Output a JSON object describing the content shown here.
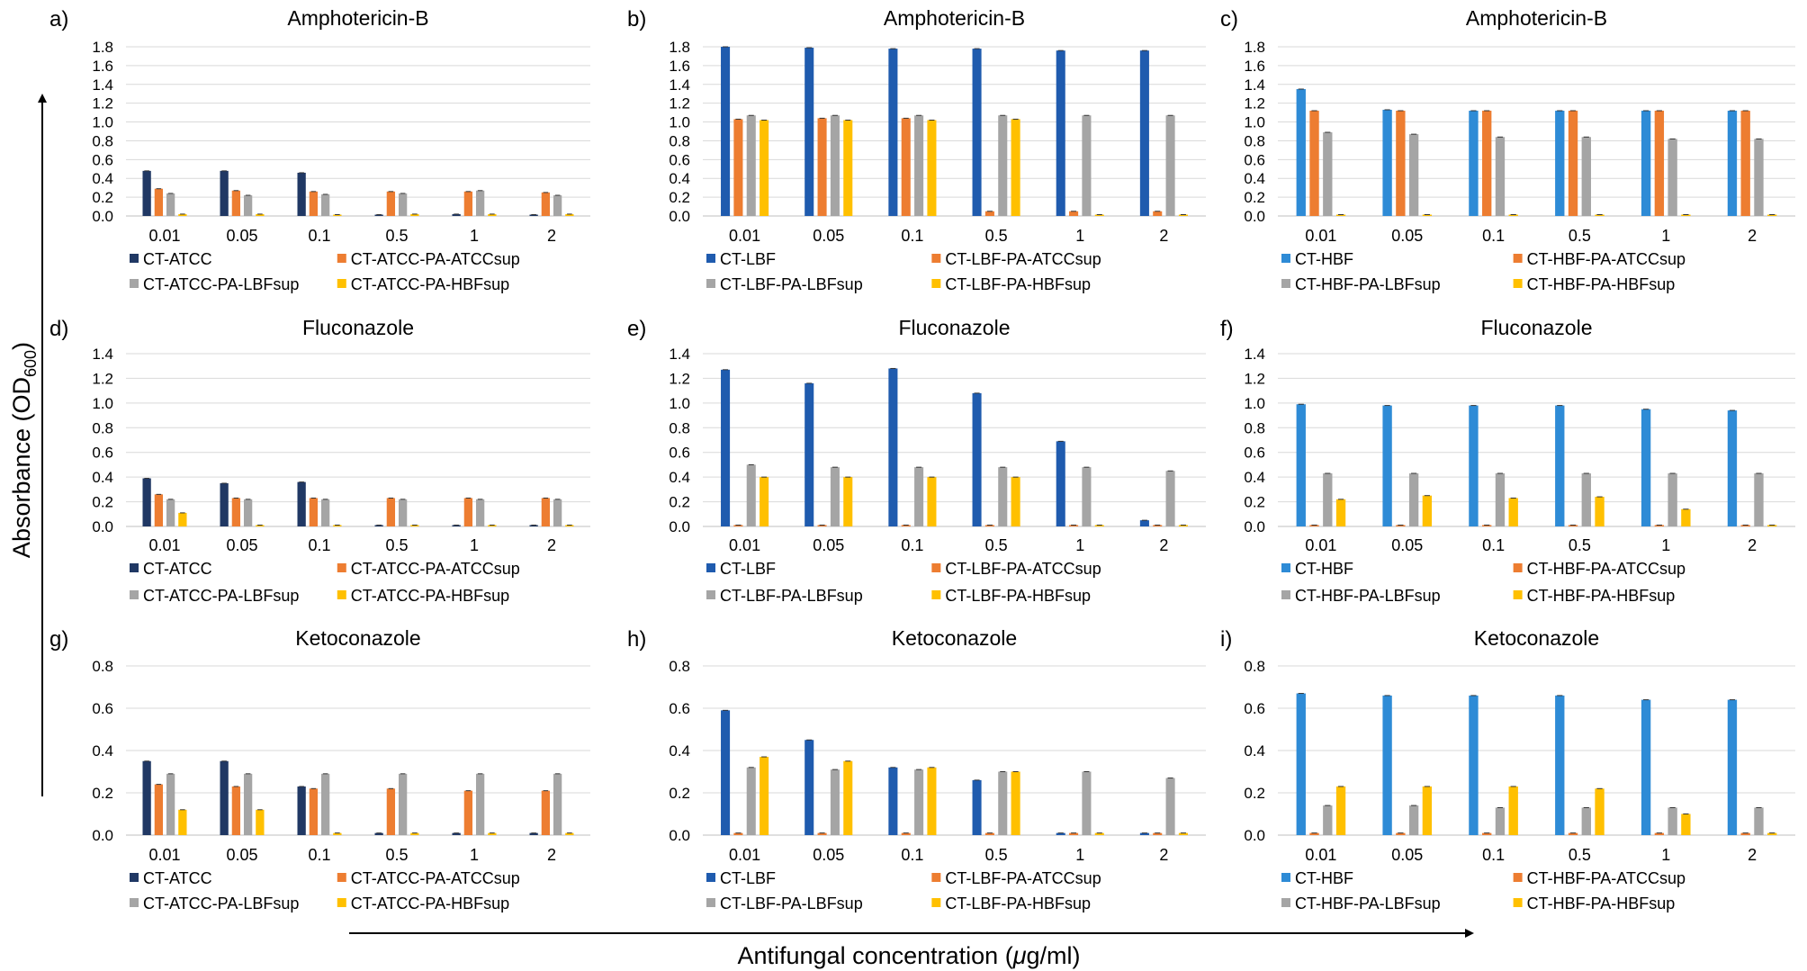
{
  "figure": {
    "y_axis_label": "Absorbance (OD",
    "y_axis_subscript": "600",
    "y_axis_close": ")",
    "x_axis_label": "Antifungal concentration (",
    "x_axis_mu": "μ",
    "x_axis_unit": "g/ml)"
  },
  "colors": {
    "dark_navy": "#203864",
    "royal_blue": "#1F5BAE",
    "light_blue": "#2E8BD6",
    "orange": "#ED7D31",
    "gray": "#A5A5A5",
    "yellow": "#FFC000",
    "grid": "#D9D9D9"
  },
  "chart_data": [
    {
      "panel": "a)",
      "type": "bar",
      "title": "Amphotericin-B",
      "categories": [
        "0.01",
        "0.05",
        "0.1",
        "0.5",
        "1",
        "2"
      ],
      "yticks": [
        "0.0",
        "0.2",
        "0.4",
        "0.6",
        "0.8",
        "1.0",
        "1.2",
        "1.4",
        "1.6",
        "1.8"
      ],
      "ylim": [
        0,
        1.8
      ],
      "grid": true,
      "legend": "bottom",
      "series": [
        {
          "name": "CT-ATCC",
          "color": "#203864",
          "values": [
            0.48,
            0.48,
            0.46,
            0.01,
            0.02,
            0.01
          ]
        },
        {
          "name": "CT-ATCC-PA-ATCCsup",
          "color": "#ED7D31",
          "values": [
            0.29,
            0.27,
            0.26,
            0.26,
            0.26,
            0.25
          ]
        },
        {
          "name": "CT-ATCC-PA-LBFsup",
          "color": "#A5A5A5",
          "values": [
            0.24,
            0.22,
            0.23,
            0.24,
            0.27,
            0.22
          ]
        },
        {
          "name": "CT-ATCC-PA-HBFsup",
          "color": "#FFC000",
          "values": [
            0.02,
            0.02,
            0.01,
            0.02,
            0.02,
            0.02
          ]
        }
      ]
    },
    {
      "panel": "b)",
      "type": "bar",
      "title": "Amphotericin-B",
      "categories": [
        "0.01",
        "0.05",
        "0.1",
        "0.5",
        "1",
        "2"
      ],
      "yticks": [
        "0.0",
        "0.2",
        "0.4",
        "0.6",
        "0.8",
        "1.0",
        "1.2",
        "1.4",
        "1.6",
        "1.8"
      ],
      "ylim": [
        0,
        1.8
      ],
      "grid": true,
      "legend": "bottom",
      "series": [
        {
          "name": "CT-LBF",
          "color": "#1F5BAE",
          "values": [
            1.8,
            1.79,
            1.78,
            1.78,
            1.76,
            1.76
          ]
        },
        {
          "name": "CT-LBF-PA-ATCCsup",
          "color": "#ED7D31",
          "values": [
            1.03,
            1.04,
            1.04,
            0.05,
            0.05,
            0.05
          ]
        },
        {
          "name": "CT-LBF-PA-LBFsup",
          "color": "#A5A5A5",
          "values": [
            1.07,
            1.07,
            1.07,
            1.07,
            1.07,
            1.07
          ]
        },
        {
          "name": "CT-LBF-PA-HBFsup",
          "color": "#FFC000",
          "values": [
            1.02,
            1.02,
            1.02,
            1.03,
            0.01,
            0.01
          ]
        }
      ]
    },
    {
      "panel": "c)",
      "type": "bar",
      "title": "Amphotericin-B",
      "categories": [
        "0.01",
        "0.05",
        "0.1",
        "0.5",
        "1",
        "2"
      ],
      "yticks": [
        "0.0",
        "0.2",
        "0.4",
        "0.6",
        "0.8",
        "1.0",
        "1.2",
        "1.4",
        "1.6",
        "1.8"
      ],
      "ylim": [
        0,
        1.8
      ],
      "grid": true,
      "legend": "bottom",
      "series": [
        {
          "name": "CT-HBF",
          "color": "#2E8BD6",
          "values": [
            1.35,
            1.13,
            1.12,
            1.12,
            1.12,
            1.12
          ]
        },
        {
          "name": "CT-HBF-PA-ATCCsup",
          "color": "#ED7D31",
          "values": [
            1.12,
            1.12,
            1.12,
            1.12,
            1.12,
            1.12
          ]
        },
        {
          "name": "CT-HBF-PA-LBFsup",
          "color": "#A5A5A5",
          "values": [
            0.89,
            0.87,
            0.84,
            0.84,
            0.82,
            0.82
          ]
        },
        {
          "name": "CT-HBF-PA-HBFsup",
          "color": "#FFC000",
          "values": [
            0.01,
            0.01,
            0.01,
            0.01,
            0.01,
            0.01
          ]
        }
      ]
    },
    {
      "panel": "d)",
      "type": "bar",
      "title": "Fluconazole",
      "categories": [
        "0.01",
        "0.05",
        "0.1",
        "0.5",
        "1",
        "2"
      ],
      "yticks": [
        "0.0",
        "0.2",
        "0.4",
        "0.6",
        "0.8",
        "1.0",
        "1.2",
        "1.4"
      ],
      "ylim": [
        0,
        1.4
      ],
      "grid": true,
      "legend": "bottom",
      "series": [
        {
          "name": "CT-ATCC",
          "color": "#203864",
          "values": [
            0.39,
            0.35,
            0.36,
            0.01,
            0.01,
            0.01
          ]
        },
        {
          "name": "CT-ATCC-PA-ATCCsup",
          "color": "#ED7D31",
          "values": [
            0.26,
            0.23,
            0.23,
            0.23,
            0.23,
            0.23
          ]
        },
        {
          "name": "CT-ATCC-PA-LBFsup",
          "color": "#A5A5A5",
          "values": [
            0.22,
            0.22,
            0.22,
            0.22,
            0.22,
            0.22
          ]
        },
        {
          "name": "CT-ATCC-PA-HBFsup",
          "color": "#FFC000",
          "values": [
            0.11,
            0.01,
            0.01,
            0.01,
            0.01,
            0.01
          ]
        }
      ]
    },
    {
      "panel": "e)",
      "type": "bar",
      "title": "Fluconazole",
      "categories": [
        "0.01",
        "0.05",
        "0.1",
        "0.5",
        "1",
        "2"
      ],
      "yticks": [
        "0.0",
        "0.2",
        "0.4",
        "0.6",
        "0.8",
        "1.0",
        "1.2",
        "1.4"
      ],
      "ylim": [
        0,
        1.4
      ],
      "grid": true,
      "legend": "bottom",
      "series": [
        {
          "name": "CT-LBF",
          "color": "#1F5BAE",
          "values": [
            1.27,
            1.16,
            1.28,
            1.08,
            0.69,
            0.05
          ]
        },
        {
          "name": "CT-LBF-PA-ATCCsup",
          "color": "#ED7D31",
          "values": [
            0.01,
            0.01,
            0.01,
            0.01,
            0.01,
            0.01
          ]
        },
        {
          "name": "CT-LBF-PA-LBFsup",
          "color": "#A5A5A5",
          "values": [
            0.5,
            0.48,
            0.48,
            0.48,
            0.48,
            0.45
          ]
        },
        {
          "name": "CT-LBF-PA-HBFsup",
          "color": "#FFC000",
          "values": [
            0.4,
            0.4,
            0.4,
            0.4,
            0.01,
            0.01
          ]
        }
      ]
    },
    {
      "panel": "f)",
      "type": "bar",
      "title": "Fluconazole",
      "categories": [
        "0.01",
        "0.05",
        "0.1",
        "0.5",
        "1",
        "2"
      ],
      "yticks": [
        "0.0",
        "0.2",
        "0.4",
        "0.6",
        "0.8",
        "1.0",
        "1.2",
        "1.4"
      ],
      "ylim": [
        0,
        1.4
      ],
      "grid": true,
      "legend": "bottom",
      "series": [
        {
          "name": "CT-HBF",
          "color": "#2E8BD6",
          "values": [
            0.99,
            0.98,
            0.98,
            0.98,
            0.95,
            0.94
          ]
        },
        {
          "name": "CT-HBF-PA-ATCCsup",
          "color": "#ED7D31",
          "values": [
            0.01,
            0.01,
            0.01,
            0.01,
            0.01,
            0.01
          ]
        },
        {
          "name": "CT-HBF-PA-LBFsup",
          "color": "#A5A5A5",
          "values": [
            0.43,
            0.43,
            0.43,
            0.43,
            0.43,
            0.43
          ]
        },
        {
          "name": "CT-HBF-PA-HBFsup",
          "color": "#FFC000",
          "values": [
            0.22,
            0.25,
            0.23,
            0.24,
            0.14,
            0.01
          ]
        }
      ]
    },
    {
      "panel": "g)",
      "type": "bar",
      "title": "Ketoconazole",
      "categories": [
        "0.01",
        "0.05",
        "0.1",
        "0.5",
        "1",
        "2"
      ],
      "yticks": [
        "0.0",
        "0.2",
        "0.4",
        "0.6",
        "0.8"
      ],
      "ylim": [
        0,
        0.8
      ],
      "grid": true,
      "legend": "bottom",
      "series": [
        {
          "name": "CT-ATCC",
          "color": "#203864",
          "values": [
            0.35,
            0.35,
            0.23,
            0.01,
            0.01,
            0.01
          ]
        },
        {
          "name": "CT-ATCC-PA-ATCCsup",
          "color": "#ED7D31",
          "values": [
            0.24,
            0.23,
            0.22,
            0.22,
            0.21,
            0.21
          ]
        },
        {
          "name": "CT-ATCC-PA-LBFsup",
          "color": "#A5A5A5",
          "values": [
            0.29,
            0.29,
            0.29,
            0.29,
            0.29,
            0.29
          ]
        },
        {
          "name": "CT-ATCC-PA-HBFsup",
          "color": "#FFC000",
          "values": [
            0.12,
            0.12,
            0.01,
            0.01,
            0.01,
            0.01
          ]
        }
      ]
    },
    {
      "panel": "h)",
      "type": "bar",
      "title": "Ketoconazole",
      "categories": [
        "0.01",
        "0.05",
        "0.1",
        "0.5",
        "1",
        "2"
      ],
      "yticks": [
        "0.0",
        "0.2",
        "0.4",
        "0.6",
        "0.8"
      ],
      "ylim": [
        0,
        0.8
      ],
      "grid": true,
      "legend": "bottom",
      "series": [
        {
          "name": "CT-LBF",
          "color": "#1F5BAE",
          "values": [
            0.59,
            0.45,
            0.32,
            0.26,
            0.01,
            0.01
          ]
        },
        {
          "name": "CT-LBF-PA-ATCCsup",
          "color": "#ED7D31",
          "values": [
            0.01,
            0.01,
            0.01,
            0.01,
            0.01,
            0.01
          ]
        },
        {
          "name": "CT-LBF-PA-LBFsup",
          "color": "#A5A5A5",
          "values": [
            0.32,
            0.31,
            0.31,
            0.3,
            0.3,
            0.27
          ]
        },
        {
          "name": "CT-LBF-PA-HBFsup",
          "color": "#FFC000",
          "values": [
            0.37,
            0.35,
            0.32,
            0.3,
            0.01,
            0.01
          ]
        }
      ]
    },
    {
      "panel": "i)",
      "type": "bar",
      "title": "Ketoconazole",
      "categories": [
        "0.01",
        "0.05",
        "0.1",
        "0.5",
        "1",
        "2"
      ],
      "yticks": [
        "0.0",
        "0.2",
        "0.4",
        "0.6",
        "0.8"
      ],
      "ylim": [
        0,
        0.8
      ],
      "grid": true,
      "legend": "bottom",
      "series": [
        {
          "name": "CT-HBF",
          "color": "#2E8BD6",
          "values": [
            0.67,
            0.66,
            0.66,
            0.66,
            0.64,
            0.64
          ]
        },
        {
          "name": "CT-HBF-PA-ATCCsup",
          "color": "#ED7D31",
          "values": [
            0.01,
            0.01,
            0.01,
            0.01,
            0.01,
            0.01
          ]
        },
        {
          "name": "CT-HBF-PA-LBFsup",
          "color": "#A5A5A5",
          "values": [
            0.14,
            0.14,
            0.13,
            0.13,
            0.13,
            0.13
          ]
        },
        {
          "name": "CT-HBF-PA-HBFsup",
          "color": "#FFC000",
          "values": [
            0.23,
            0.23,
            0.23,
            0.22,
            0.1,
            0.01
          ]
        }
      ]
    }
  ]
}
